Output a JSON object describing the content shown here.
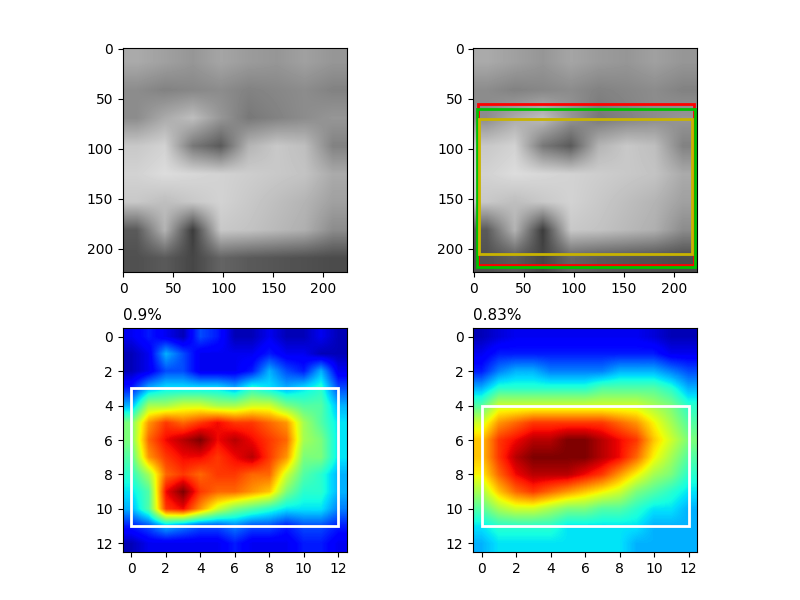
{
  "chart_data": [
    {
      "type": "image",
      "color": "gray",
      "color_range": [
        0,
        255
      ],
      "pixels": [
        [
          170,
          160,
          150,
          165,
          155,
          150,
          160,
          150
        ],
        [
          140,
          130,
          135,
          140,
          130,
          135,
          140,
          130
        ],
        [
          140,
          170,
          190,
          150,
          120,
          130,
          140,
          150
        ],
        [
          200,
          210,
          120,
          90,
          180,
          200,
          190,
          130
        ],
        [
          210,
          220,
          215,
          210,
          205,
          200,
          195,
          170
        ],
        [
          200,
          190,
          200,
          210,
          200,
          190,
          180,
          160
        ],
        [
          90,
          180,
          60,
          200,
          195,
          185,
          175,
          140
        ],
        [
          80,
          90,
          70,
          100,
          90,
          85,
          80,
          75
        ]
      ],
      "xlim": [
        -0.5,
        223.5
      ],
      "ylim": [
        223.5,
        -0.5
      ],
      "xticks": [
        0,
        50,
        100,
        150,
        200
      ],
      "yticks": [
        0,
        50,
        100,
        150,
        200
      ]
    },
    {
      "type": "image",
      "color": "gray",
      "color_range": [
        0,
        255
      ],
      "pixels": [
        [
          170,
          160,
          150,
          165,
          155,
          150,
          160,
          150
        ],
        [
          140,
          130,
          135,
          140,
          130,
          135,
          140,
          130
        ],
        [
          140,
          170,
          190,
          150,
          120,
          130,
          140,
          150
        ],
        [
          200,
          210,
          120,
          90,
          180,
          200,
          190,
          130
        ],
        [
          210,
          220,
          215,
          210,
          205,
          200,
          195,
          170
        ],
        [
          200,
          190,
          200,
          210,
          200,
          190,
          180,
          160
        ],
        [
          90,
          180,
          60,
          200,
          195,
          185,
          175,
          140
        ],
        [
          80,
          90,
          70,
          100,
          90,
          85,
          80,
          75
        ]
      ],
      "boxes": [
        {
          "color": "red",
          "coords": [
            4,
            55,
            220,
            216
          ]
        },
        {
          "color": "#00c000",
          "coords": [
            3,
            60,
            221,
            218
          ]
        },
        {
          "color": "#c8b400",
          "coords": [
            5,
            70,
            218,
            205
          ]
        }
      ],
      "xlim": [
        -0.5,
        223.5
      ],
      "ylim": [
        223.5,
        -0.5
      ],
      "xticks": [
        0,
        50,
        100,
        150,
        200
      ],
      "yticks": [
        0,
        50,
        100,
        150,
        200
      ]
    },
    {
      "type": "heatmap",
      "title": "0.9%",
      "color": "jet",
      "color_range": [
        0,
        1
      ],
      "cells": [
        [
          0.1,
          0.15,
          0.1,
          0.05,
          0.2,
          0.15,
          0.05,
          0.05,
          0.1,
          0.05,
          0.05,
          0.1,
          0.05
        ],
        [
          0.05,
          0.1,
          0.3,
          0.2,
          0.1,
          0.1,
          0.1,
          0.1,
          0.15,
          0.1,
          0.1,
          0.05,
          0.05
        ],
        [
          0.05,
          0.1,
          0.2,
          0.2,
          0.1,
          0.1,
          0.1,
          0.15,
          0.3,
          0.2,
          0.15,
          0.3,
          0.1
        ],
        [
          0.15,
          0.3,
          0.35,
          0.35,
          0.35,
          0.35,
          0.3,
          0.4,
          0.35,
          0.3,
          0.35,
          0.4,
          0.2
        ],
        [
          0.3,
          0.55,
          0.55,
          0.6,
          0.6,
          0.55,
          0.55,
          0.6,
          0.6,
          0.5,
          0.45,
          0.45,
          0.3
        ],
        [
          0.5,
          0.75,
          0.85,
          0.8,
          0.85,
          0.9,
          0.85,
          0.85,
          0.8,
          0.75,
          0.55,
          0.45,
          0.35
        ],
        [
          0.5,
          0.8,
          0.9,
          0.95,
          1.0,
          0.9,
          0.95,
          0.9,
          0.85,
          0.8,
          0.55,
          0.5,
          0.35
        ],
        [
          0.45,
          0.75,
          0.85,
          0.9,
          0.9,
          0.85,
          0.9,
          0.95,
          0.85,
          0.75,
          0.5,
          0.5,
          0.35
        ],
        [
          0.4,
          0.55,
          0.8,
          0.85,
          0.8,
          0.85,
          0.85,
          0.8,
          0.8,
          0.6,
          0.45,
          0.4,
          0.3
        ],
        [
          0.35,
          0.45,
          0.9,
          1.0,
          0.85,
          0.8,
          0.8,
          0.75,
          0.7,
          0.5,
          0.4,
          0.4,
          0.3
        ],
        [
          0.3,
          0.45,
          0.85,
          0.9,
          0.75,
          0.6,
          0.5,
          0.45,
          0.4,
          0.35,
          0.35,
          0.35,
          0.25
        ],
        [
          0.15,
          0.2,
          0.3,
          0.25,
          0.2,
          0.2,
          0.25,
          0.2,
          0.2,
          0.15,
          0.2,
          0.2,
          0.15
        ],
        [
          0.05,
          0.1,
          0.1,
          0.1,
          0.1,
          0.1,
          0.15,
          0.1,
          0.1,
          0.1,
          0.15,
          0.15,
          0.1
        ]
      ],
      "boxes": [
        {
          "color": "white",
          "coords": [
            0,
            3,
            12,
            11
          ]
        }
      ],
      "xlim": [
        -0.5,
        12.5
      ],
      "ylim": [
        12.5,
        -0.5
      ],
      "xticks": [
        0,
        2,
        4,
        6,
        8,
        10,
        12
      ],
      "yticks": [
        0,
        2,
        4,
        6,
        8,
        10,
        12
      ]
    },
    {
      "type": "heatmap",
      "title": "0.83%",
      "color": "jet",
      "color_range": [
        0,
        1
      ],
      "cells": [
        [
          0.05,
          0.08,
          0.1,
          0.1,
          0.1,
          0.1,
          0.1,
          0.1,
          0.1,
          0.1,
          0.08,
          0.05,
          0.05
        ],
        [
          0.1,
          0.15,
          0.15,
          0.15,
          0.15,
          0.15,
          0.15,
          0.15,
          0.15,
          0.15,
          0.15,
          0.1,
          0.1
        ],
        [
          0.15,
          0.25,
          0.3,
          0.3,
          0.25,
          0.25,
          0.25,
          0.25,
          0.3,
          0.3,
          0.3,
          0.25,
          0.2
        ],
        [
          0.3,
          0.4,
          0.4,
          0.4,
          0.4,
          0.4,
          0.4,
          0.45,
          0.45,
          0.45,
          0.45,
          0.4,
          0.3
        ],
        [
          0.45,
          0.6,
          0.6,
          0.6,
          0.6,
          0.6,
          0.6,
          0.6,
          0.6,
          0.6,
          0.55,
          0.5,
          0.4
        ],
        [
          0.6,
          0.75,
          0.8,
          0.85,
          0.85,
          0.85,
          0.85,
          0.85,
          0.8,
          0.75,
          0.65,
          0.55,
          0.45
        ],
        [
          0.7,
          0.85,
          0.9,
          0.95,
          0.95,
          1.0,
          1.0,
          0.95,
          0.9,
          0.85,
          0.7,
          0.6,
          0.5
        ],
        [
          0.7,
          0.85,
          0.95,
          1.0,
          1.0,
          1.0,
          1.0,
          0.95,
          0.9,
          0.8,
          0.65,
          0.55,
          0.45
        ],
        [
          0.65,
          0.8,
          0.9,
          0.95,
          0.95,
          0.95,
          0.9,
          0.85,
          0.75,
          0.65,
          0.55,
          0.5,
          0.4
        ],
        [
          0.55,
          0.7,
          0.8,
          0.85,
          0.8,
          0.75,
          0.7,
          0.65,
          0.6,
          0.5,
          0.45,
          0.4,
          0.35
        ],
        [
          0.45,
          0.55,
          0.6,
          0.6,
          0.55,
          0.5,
          0.5,
          0.45,
          0.45,
          0.4,
          0.35,
          0.35,
          0.3
        ],
        [
          0.35,
          0.4,
          0.4,
          0.4,
          0.4,
          0.35,
          0.35,
          0.35,
          0.35,
          0.35,
          0.3,
          0.3,
          0.3
        ],
        [
          0.3,
          0.35,
          0.35,
          0.35,
          0.35,
          0.35,
          0.35,
          0.35,
          0.35,
          0.3,
          0.3,
          0.3,
          0.3
        ]
      ],
      "boxes": [
        {
          "color": "white",
          "coords": [
            0,
            4,
            12,
            11
          ]
        }
      ],
      "xlim": [
        -0.5,
        12.5
      ],
      "ylim": [
        12.5,
        -0.5
      ],
      "xticks": [
        0,
        2,
        4,
        6,
        8,
        10,
        12
      ],
      "yticks": [
        0,
        2,
        4,
        6,
        8,
        10,
        12
      ]
    }
  ]
}
